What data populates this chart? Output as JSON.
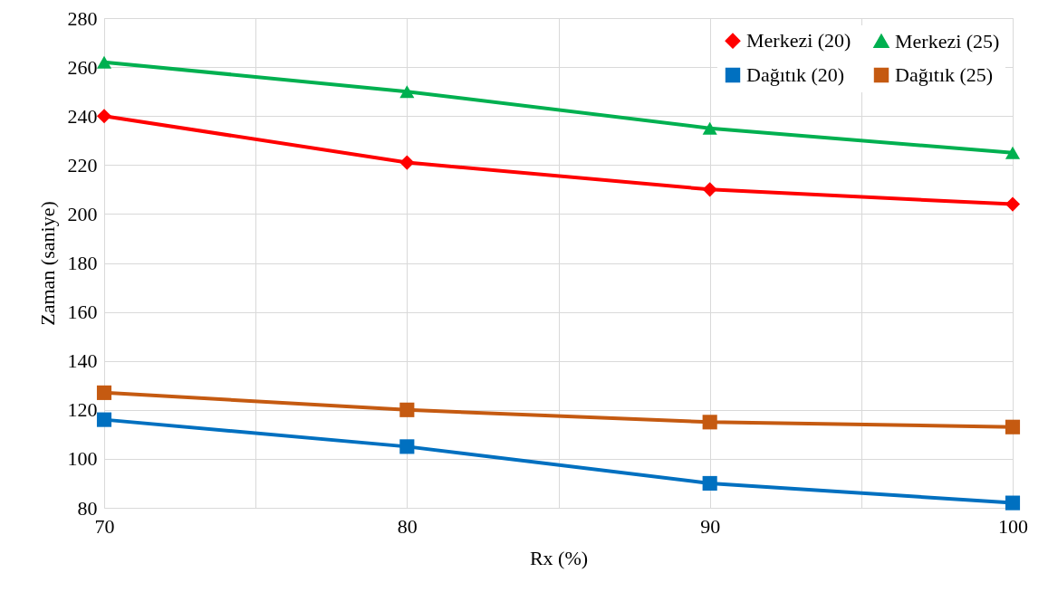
{
  "chart_data": {
    "type": "line",
    "xlabel": "Rx (%)",
    "ylabel": "Zaman (saniye)",
    "x": [
      70,
      80,
      90,
      100
    ],
    "series": [
      {
        "name": "Merkezi (20)",
        "color": "#ff0000",
        "marker": "diamond",
        "values": [
          240,
          221,
          210,
          204
        ]
      },
      {
        "name": "Dağıtık (20)",
        "color": "#0070c0",
        "marker": "square",
        "values": [
          116,
          105,
          90,
          82
        ]
      },
      {
        "name": "Merkezi (25)",
        "color": "#00b050",
        "marker": "triangle",
        "values": [
          262,
          250,
          235,
          225
        ]
      },
      {
        "name": "Dağıtık (25)",
        "color": "#c55a11",
        "marker": "square",
        "values": [
          127,
          120,
          115,
          113
        ]
      }
    ],
    "xlim": [
      70,
      100
    ],
    "xticks": [
      70,
      {
        "value": 75,
        "label": null
      },
      80,
      {
        "value": 85,
        "label": null
      },
      90,
      {
        "value": 95,
        "label": null
      },
      100
    ],
    "ylim": [
      80,
      280
    ],
    "yticks": [
      80,
      100,
      120,
      140,
      160,
      180,
      200,
      220,
      240,
      260,
      280
    ],
    "grid": true,
    "legend": "top right",
    "line_style": "solid"
  }
}
